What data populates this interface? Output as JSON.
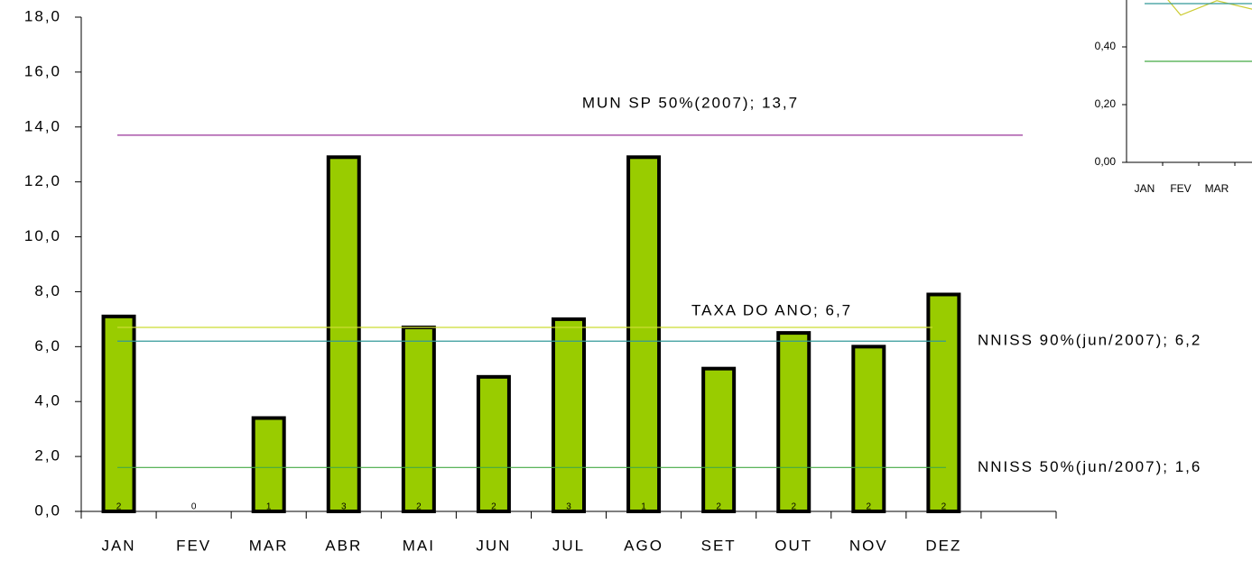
{
  "chart_data": [
    {
      "type": "bar",
      "categories": [
        "JAN",
        "FEV",
        "MAR",
        "ABR",
        "MAI",
        "JUN",
        "JUL",
        "AGO",
        "SET",
        "OUT",
        "NOV",
        "DEZ",
        null
      ],
      "values": [
        7.1,
        0,
        3.4,
        12.9,
        6.7,
        4.9,
        7.0,
        12.9,
        5.2,
        6.5,
        6.0,
        7.9,
        null
      ],
      "bar_labels": [
        "2",
        "0",
        "1",
        "3",
        "2",
        "2",
        "3",
        "1",
        "2",
        "2",
        "2",
        "2",
        null
      ],
      "color": "#99cc00",
      "ylim": [
        0,
        18
      ],
      "yticks": [
        {
          "value": 0,
          "label": "0,0"
        },
        {
          "value": 2,
          "label": "2,0"
        },
        {
          "value": 4,
          "label": "4,0"
        },
        {
          "value": 6,
          "label": "6,0"
        },
        {
          "value": 8,
          "label": "8,0"
        },
        {
          "value": 10,
          "label": "10,0"
        },
        {
          "value": 12,
          "label": "12,0"
        },
        {
          "value": 14,
          "label": "14,0"
        },
        {
          "value": 16,
          "label": "16,0"
        },
        {
          "value": 18,
          "label": "18,0"
        }
      ],
      "reference_lines": [
        {
          "label": "MUN SP 50%(2007); 13,7",
          "value": 13.7,
          "color": "#993399"
        },
        {
          "label": "TAXA DO ANO; 6,7",
          "value": 6.7,
          "color": "#ccdd33"
        },
        {
          "label": "NNISS 90%(jun/2007); 6,2",
          "value": 6.2,
          "color": "#339999"
        },
        {
          "label": "NNISS 50%(jun/2007); 1,6",
          "value": 1.6,
          "color": "#44aa44"
        }
      ]
    },
    {
      "type": "line",
      "categories": [
        "JAN",
        "FEV",
        "MAR",
        null
      ],
      "series": [
        {
          "color": "#cccc33",
          "values": [
            0.66,
            0.51,
            0.56,
            0.53
          ]
        },
        {
          "color": "#339999",
          "values": [
            0.55,
            0.55,
            0.55,
            0.55
          ]
        },
        {
          "color": "#44aa44",
          "values": [
            0.35,
            0.35,
            0.35,
            0.35
          ]
        }
      ],
      "ylim": [
        0,
        0.6
      ],
      "yticks": [
        {
          "value": 0,
          "label": "0,00"
        },
        {
          "value": 0.2,
          "label": "0,20"
        },
        {
          "value": 0.4,
          "label": "0,40"
        }
      ]
    }
  ]
}
